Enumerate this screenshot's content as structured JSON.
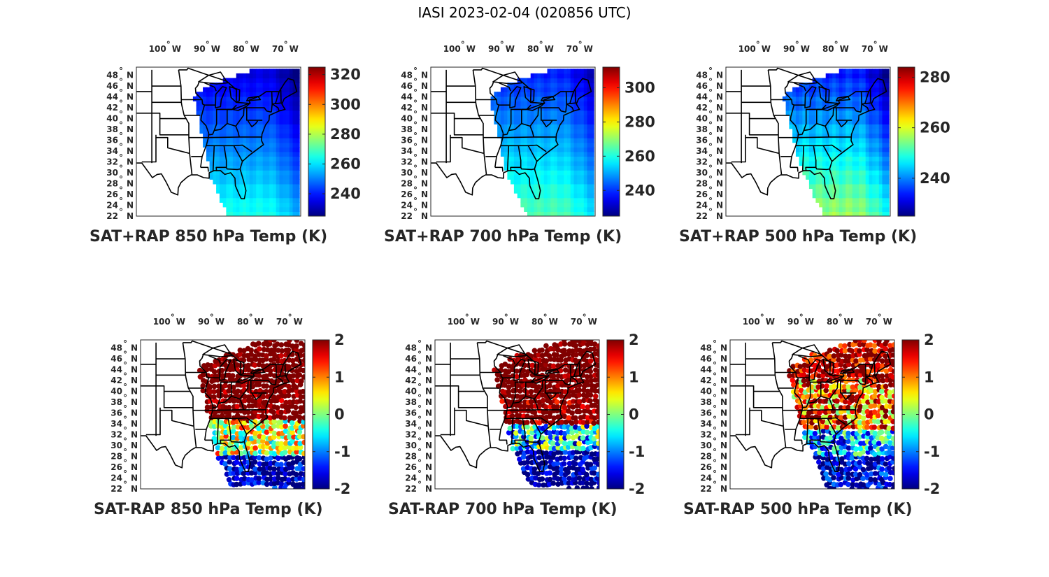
{
  "figure": {
    "title": "IASI 2023-02-04 (020856 UTC)"
  },
  "axes": {
    "lon_ticks": [
      {
        "deg": "100",
        "dir": "W"
      },
      {
        "deg": "90",
        "dir": "W"
      },
      {
        "deg": "80",
        "dir": "W"
      },
      {
        "deg": "70",
        "dir": "W"
      }
    ],
    "lat_ticks": [
      {
        "deg": "48",
        "dir": "N"
      },
      {
        "deg": "46",
        "dir": "N"
      },
      {
        "deg": "44",
        "dir": "N"
      },
      {
        "deg": "42",
        "dir": "N"
      },
      {
        "deg": "40",
        "dir": "N"
      },
      {
        "deg": "38",
        "dir": "N"
      },
      {
        "deg": "36",
        "dir": "N"
      },
      {
        "deg": "34",
        "dir": "N"
      },
      {
        "deg": "32",
        "dir": "N"
      },
      {
        "deg": "30",
        "dir": "N"
      },
      {
        "deg": "28",
        "dir": "N"
      },
      {
        "deg": "26",
        "dir": "N"
      },
      {
        "deg": "24",
        "dir": "N"
      },
      {
        "deg": "22",
        "dir": "N"
      }
    ],
    "degree_symbol": "°"
  },
  "colormap": "jet",
  "panels": [
    {
      "title": "SAT+RAP 850 hPa Temp (K)",
      "kind": "field",
      "clim": [
        225,
        325
      ],
      "ticks": [
        "320",
        "300",
        "280",
        "260",
        "240"
      ],
      "tick_values": [
        320,
        300,
        280,
        260,
        240
      ]
    },
    {
      "title": "SAT+RAP 700 hPa Temp (K)",
      "kind": "field",
      "clim": [
        225,
        312
      ],
      "ticks": [
        "300",
        "280",
        "260",
        "240"
      ],
      "tick_values": [
        300,
        280,
        260,
        240
      ]
    },
    {
      "title": "SAT+RAP 500 hPa Temp (K)",
      "kind": "field",
      "clim": [
        225,
        284
      ],
      "ticks": [
        "280",
        "260",
        "240"
      ],
      "tick_values": [
        280,
        260,
        240
      ]
    },
    {
      "title": "SAT-RAP 850 hPa Temp (K)",
      "kind": "diff",
      "clim": [
        -2,
        2
      ],
      "ticks": [
        "2",
        "1",
        "0",
        "-1",
        "-2"
      ],
      "tick_values": [
        2,
        1,
        0,
        -1,
        -2
      ]
    },
    {
      "title": "SAT-RAP 700 hPa Temp (K)",
      "kind": "diff",
      "clim": [
        -2,
        2
      ],
      "ticks": [
        "2",
        "1",
        "0",
        "-1",
        "-2"
      ],
      "tick_values": [
        2,
        1,
        0,
        -1,
        -2
      ]
    },
    {
      "title": "SAT-RAP 500 hPa Temp (K)",
      "kind": "diff",
      "clim": [
        -2,
        2
      ],
      "ticks": [
        "2",
        "1",
        "0",
        "-1",
        "-2"
      ],
      "tick_values": [
        2,
        1,
        0,
        -1,
        -2
      ]
    }
  ]
}
